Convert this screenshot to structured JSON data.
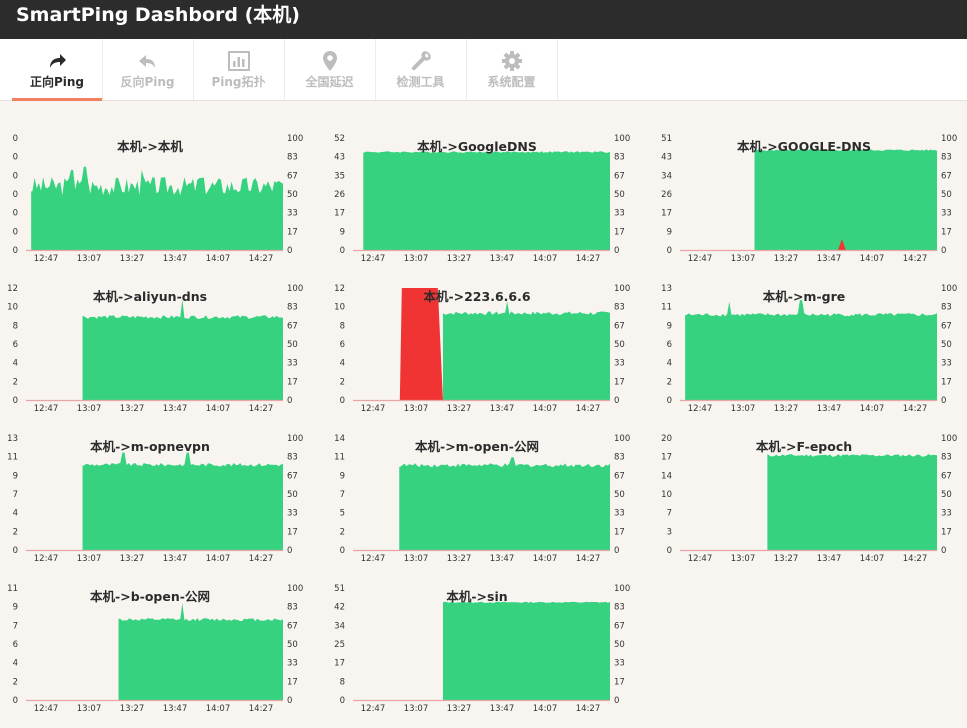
{
  "app": {
    "title": "SmartPing Dashbord (本机)"
  },
  "colors": {
    "ok": "#36d27f",
    "loss": "#f03434",
    "baseline": "#e9a5a5",
    "accent": "#f08060"
  },
  "nav": {
    "tabs": [
      {
        "label": "正向Ping",
        "icon": "share-arrow-icon",
        "active": true
      },
      {
        "label": "反向Ping",
        "icon": "reply-arrow-icon",
        "active": false
      },
      {
        "label": "Ping拓扑",
        "icon": "bar-chart-icon",
        "active": false
      },
      {
        "label": "全国延迟",
        "icon": "map-pin-icon",
        "active": false
      },
      {
        "label": "检测工具",
        "icon": "wrench-icon",
        "active": false
      },
      {
        "label": "系统配置",
        "icon": "gear-icon",
        "active": false
      }
    ]
  },
  "chart_data": [
    {
      "type": "area",
      "title": "本机->本机",
      "x_ticks": [
        "12:47",
        "13:07",
        "13:27",
        "13:47",
        "14:07",
        "14:27"
      ],
      "y_left_ticks": [
        "0",
        "0",
        "0",
        "0",
        "0",
        "0",
        "0"
      ],
      "y_right_ticks": [
        "0",
        "17",
        "33",
        "50",
        "67",
        "83",
        "100"
      ],
      "y_max": 0.7,
      "start": 0.02,
      "level": 0.4,
      "noise": 0.06,
      "spikes": [
        [
          0.18,
          0.5
        ],
        [
          0.23,
          0.52
        ],
        [
          0.45,
          0.5
        ],
        [
          0.68,
          0.45
        ]
      ],
      "loss": []
    },
    {
      "type": "area",
      "title": "本机->GoogleDNS",
      "x_ticks": [
        "12:47",
        "13:07",
        "13:27",
        "13:47",
        "14:07",
        "14:27"
      ],
      "y_left_ticks": [
        "0",
        "9",
        "17",
        "26",
        "35",
        "43",
        "52"
      ],
      "y_right_ticks": [
        "0",
        "17",
        "33",
        "50",
        "67",
        "83",
        "100"
      ],
      "y_max": 52,
      "start": 0.04,
      "level": 45.5,
      "noise": 0.4,
      "spikes": [],
      "loss": []
    },
    {
      "type": "area",
      "title": "本机->GOOGLE-DNS",
      "x_ticks": [
        "12:47",
        "13:07",
        "13:27",
        "13:47",
        "14:07",
        "14:27"
      ],
      "y_left_ticks": [
        "0",
        "9",
        "17",
        "26",
        "34",
        "43",
        "51"
      ],
      "y_right_ticks": [
        "0",
        "17",
        "33",
        "50",
        "67",
        "83",
        "100"
      ],
      "y_max": 51,
      "start": 0.29,
      "level": 45.5,
      "noise": 0.4,
      "spikes": [],
      "loss": [
        {
          "center": 0.63,
          "width": 0.015,
          "value": 5
        }
      ]
    },
    {
      "type": "area",
      "title": "本机->aliyun-dns",
      "x_ticks": [
        "12:47",
        "13:07",
        "13:27",
        "13:47",
        "14:07",
        "14:27"
      ],
      "y_left_ticks": [
        "0",
        "2",
        "4",
        "6",
        "8",
        "10",
        "12"
      ],
      "y_right_ticks": [
        "0",
        "17",
        "33",
        "50",
        "67",
        "83",
        "100"
      ],
      "y_max": 12,
      "start": 0.22,
      "level": 8.9,
      "noise": 0.2,
      "spikes": [
        [
          0.61,
          10.8
        ]
      ],
      "loss": []
    },
    {
      "type": "area",
      "title": "本机->223.6.6.6",
      "x_ticks": [
        "12:47",
        "13:07",
        "13:27",
        "13:47",
        "14:07",
        "14:27"
      ],
      "y_left_ticks": [
        "0",
        "2",
        "4",
        "6",
        "8",
        "10",
        "12"
      ],
      "y_right_ticks": [
        "0",
        "17",
        "33",
        "50",
        "67",
        "83",
        "100"
      ],
      "y_max": 12,
      "start": 0.35,
      "level": 9.3,
      "noise": 0.2,
      "spikes": [
        [
          0.6,
          10.6
        ]
      ],
      "loss": [
        {
          "from": 0.19,
          "to": 0.35,
          "value": 12
        }
      ]
    },
    {
      "type": "area",
      "title": "本机->m-gre",
      "x_ticks": [
        "12:47",
        "13:07",
        "13:27",
        "13:47",
        "14:07",
        "14:27"
      ],
      "y_left_ticks": [
        "0",
        "2",
        "4",
        "6",
        "9",
        "11",
        "13"
      ],
      "y_right_ticks": [
        "0",
        "17",
        "33",
        "50",
        "67",
        "83",
        "100"
      ],
      "y_max": 13,
      "start": 0.02,
      "level": 9.9,
      "noise": 0.2,
      "spikes": [
        [
          0.19,
          11.4
        ],
        [
          0.47,
          11.6
        ]
      ],
      "loss": []
    },
    {
      "type": "area",
      "title": "本机->m-opnevpn",
      "x_ticks": [
        "12:47",
        "13:07",
        "13:27",
        "13:47",
        "14:07",
        "14:27"
      ],
      "y_left_ticks": [
        "0",
        "2",
        "4",
        "7",
        "9",
        "11",
        "13"
      ],
      "y_right_ticks": [
        "0",
        "17",
        "33",
        "50",
        "67",
        "83",
        "100"
      ],
      "y_max": 13,
      "start": 0.22,
      "level": 9.9,
      "noise": 0.2,
      "spikes": [
        [
          0.38,
          11.3
        ],
        [
          0.63,
          11.3
        ]
      ],
      "loss": []
    },
    {
      "type": "area",
      "title": "本机->m-open-公网",
      "x_ticks": [
        "12:47",
        "13:07",
        "13:27",
        "13:47",
        "14:07",
        "14:27"
      ],
      "y_left_ticks": [
        "0",
        "2",
        "5",
        "7",
        "9",
        "11",
        "14"
      ],
      "y_right_ticks": [
        "0",
        "17",
        "33",
        "50",
        "67",
        "83",
        "100"
      ],
      "y_max": 14,
      "start": 0.18,
      "level": 10.6,
      "noise": 0.25,
      "spikes": [
        [
          0.62,
          11.6
        ]
      ],
      "loss": []
    },
    {
      "type": "area",
      "title": "本机->F-epoch",
      "x_ticks": [
        "12:47",
        "13:07",
        "13:27",
        "13:47",
        "14:07",
        "14:27"
      ],
      "y_left_ticks": [
        "0",
        "3",
        "7",
        "10",
        "14",
        "17",
        "20"
      ],
      "y_right_ticks": [
        "0",
        "17",
        "33",
        "50",
        "67",
        "83",
        "100"
      ],
      "y_max": 20,
      "start": 0.34,
      "level": 16.9,
      "noise": 0.25,
      "spikes": [],
      "loss": []
    },
    {
      "type": "area",
      "title": "本机->b-open-公网",
      "x_ticks": [
        "12:47",
        "13:07",
        "13:27",
        "13:47",
        "14:07",
        "14:27"
      ],
      "y_left_ticks": [
        "0",
        "2",
        "4",
        "6",
        "7",
        "9",
        "11"
      ],
      "y_right_ticks": [
        "0",
        "17",
        "33",
        "50",
        "67",
        "83",
        "100"
      ],
      "y_max": 11,
      "start": 0.36,
      "level": 7.9,
      "noise": 0.15,
      "spikes": [
        [
          0.61,
          9.5
        ]
      ],
      "loss": []
    },
    {
      "type": "area",
      "title": "本机->sin",
      "x_ticks": [
        "12:47",
        "13:07",
        "13:27",
        "13:47",
        "14:07",
        "14:27"
      ],
      "y_left_ticks": [
        "0",
        "8",
        "17",
        "25",
        "34",
        "42",
        "51"
      ],
      "y_right_ticks": [
        "0",
        "17",
        "33",
        "50",
        "67",
        "83",
        "100"
      ],
      "y_max": 51,
      "start": 0.35,
      "level": 44.5,
      "noise": 0.3,
      "spikes": [],
      "loss": []
    }
  ]
}
